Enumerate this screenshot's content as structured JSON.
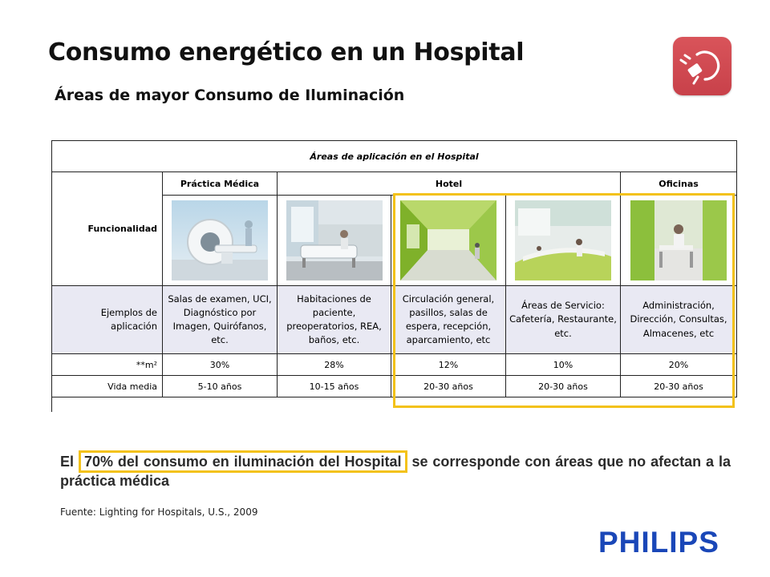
{
  "slide": {
    "title": "Consumo energético en un Hospital",
    "subtitle": "Áreas de mayor Consumo de Iluminación",
    "icon": "plug-icon",
    "accent_color": "#f3c21a",
    "icon_color": "#c8414a"
  },
  "table": {
    "header": "Áreas de aplicación en el Hospital",
    "categories": [
      "Práctica Médica",
      "Hotel",
      "Oficinas"
    ],
    "row_labels": {
      "funcionalidad": "Funcionalidad",
      "ejemplos": "Ejemplos de aplicación",
      "m2": "**m²",
      "vida": "Vida media"
    },
    "columns": [
      {
        "photo": "ct-scanner-photo",
        "ejemplos": "Salas de examen, UCI, Diagnóstico por Imagen, Quirófanos, etc.",
        "m2": "30%",
        "vida": "5-10 años"
      },
      {
        "photo": "patient-room-photo",
        "ejemplos": "Habitaciones de paciente, preoperatorios, REA, baños, etc.",
        "m2": "28%",
        "vida": "10-15 años"
      },
      {
        "photo": "corridor-photo",
        "ejemplos": "Circulación general, pasillos, salas de espera, recepción, aparcamiento, etc",
        "m2": "12%",
        "vida": "20-30 años"
      },
      {
        "photo": "cafeteria-photo",
        "ejemplos": "Áreas de Servicio: Cafetería, Restaurante, etc.",
        "m2": "10%",
        "vida": "20-30 años"
      },
      {
        "photo": "office-photo",
        "ejemplos": "Administración, Dirección, Consultas, Almacenes, etc",
        "m2": "20%",
        "vida": "20-30 años"
      }
    ]
  },
  "statement": {
    "prefix": "El",
    "highlight": "70% del consumo en iluminación del Hospital",
    "suffix": "se corresponde con áreas que no afectan a la práctica médica"
  },
  "source": "Fuente: Lighting for Hospitals, U.S., 2009",
  "logo": "PHILIPS"
}
